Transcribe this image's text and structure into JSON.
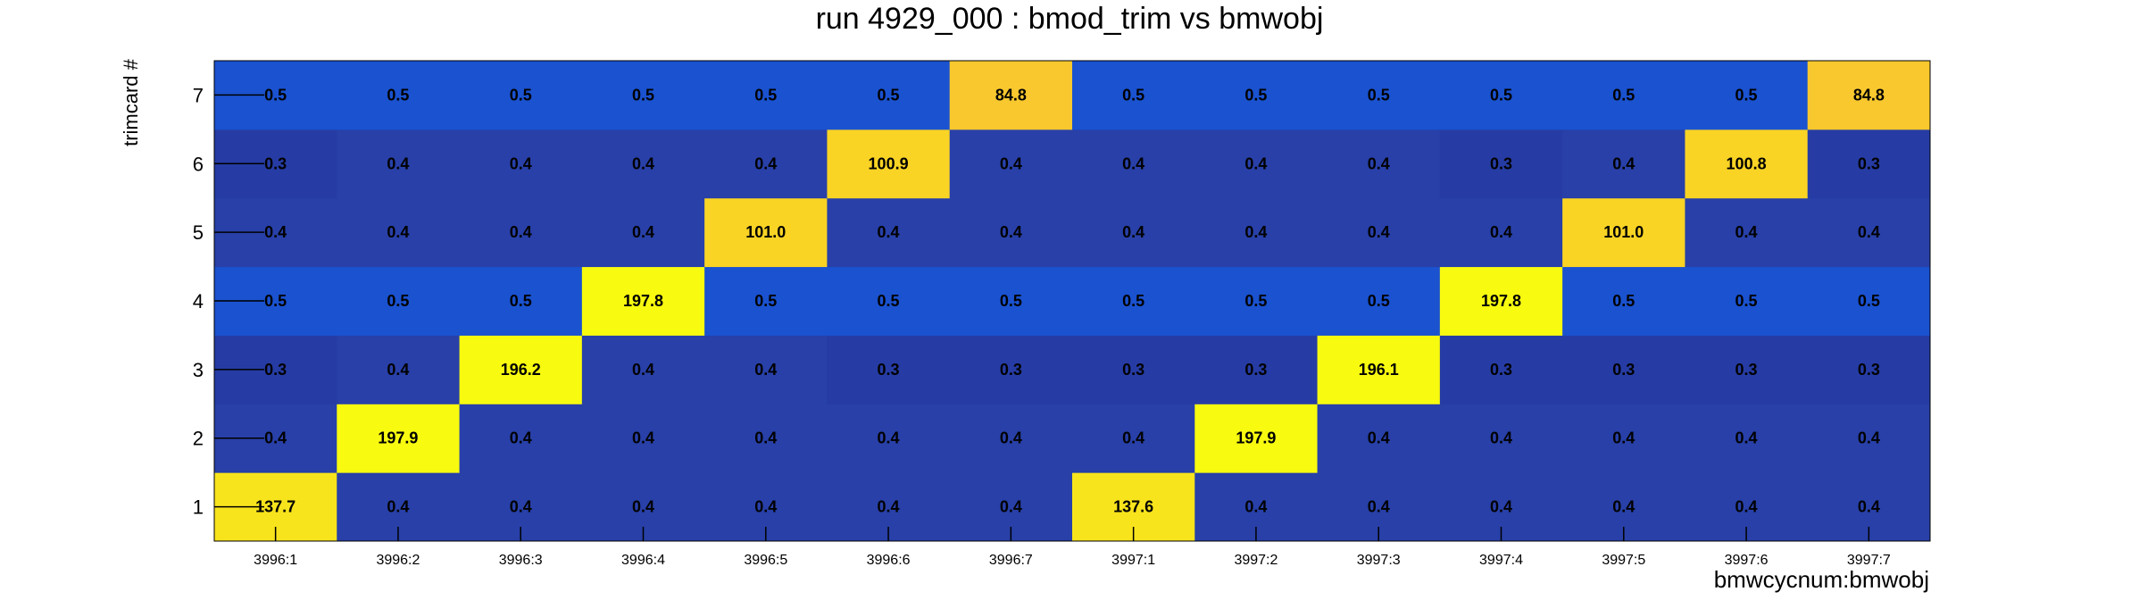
{
  "chart_data": {
    "type": "heatmap",
    "title": "run 4929_000 : bmod_trim vs bmwobj",
    "xlabel": "bmwcycnum:bmwobj",
    "ylabel": "trimcard #",
    "x_categories": [
      "3996:1",
      "3996:2",
      "3996:3",
      "3996:4",
      "3996:5",
      "3996:6",
      "3996:7",
      "3997:1",
      "3997:2",
      "3997:3",
      "3997:4",
      "3997:5",
      "3997:6",
      "3997:7"
    ],
    "y_categories": [
      "1",
      "2",
      "3",
      "4",
      "5",
      "6",
      "7"
    ],
    "values": [
      [
        "137.7",
        "0.4",
        "0.4",
        "0.4",
        "0.4",
        "0.4",
        "0.4",
        "137.6",
        "0.4",
        "0.4",
        "0.4",
        "0.4",
        "0.4",
        "0.4"
      ],
      [
        "0.4",
        "197.9",
        "0.4",
        "0.4",
        "0.4",
        "0.4",
        "0.4",
        "0.4",
        "197.9",
        "0.4",
        "0.4",
        "0.4",
        "0.4",
        "0.4"
      ],
      [
        "0.3",
        "0.4",
        "196.2",
        "0.4",
        "0.4",
        "0.3",
        "0.3",
        "0.3",
        "0.3",
        "196.1",
        "0.3",
        "0.3",
        "0.3",
        "0.3"
      ],
      [
        "0.5",
        "0.5",
        "0.5",
        "197.8",
        "0.5",
        "0.5",
        "0.5",
        "0.5",
        "0.5",
        "0.5",
        "197.8",
        "0.5",
        "0.5",
        "0.5"
      ],
      [
        "0.4",
        "0.4",
        "0.4",
        "0.4",
        "101.0",
        "0.4",
        "0.4",
        "0.4",
        "0.4",
        "0.4",
        "0.4",
        "101.0",
        "0.4",
        "0.4"
      ],
      [
        "0.3",
        "0.4",
        "0.4",
        "0.4",
        "0.4",
        "100.9",
        "0.4",
        "0.4",
        "0.4",
        "0.4",
        "0.3",
        "0.4",
        "100.8",
        "0.3"
      ],
      [
        "0.5",
        "0.5",
        "0.5",
        "0.5",
        "0.5",
        "0.5",
        "84.8",
        "0.5",
        "0.5",
        "0.5",
        "0.5",
        "0.5",
        "0.5",
        "84.8"
      ]
    ],
    "color_scale": [
      {
        "min": 0.0,
        "max": 0.35,
        "color": "#263ca4"
      },
      {
        "min": 0.35,
        "max": 0.45,
        "color": "#2840a8"
      },
      {
        "min": 0.45,
        "max": 1.0,
        "color": "#1a52d0"
      },
      {
        "min": 80,
        "max": 90,
        "color": "#f8c82e"
      },
      {
        "min": 90,
        "max": 120,
        "color": "#fad424"
      },
      {
        "min": 120,
        "max": 150,
        "color": "#f8e41c"
      },
      {
        "min": 150,
        "max": 300,
        "color": "#f8fa10"
      }
    ],
    "grid": false,
    "legend": "none"
  }
}
